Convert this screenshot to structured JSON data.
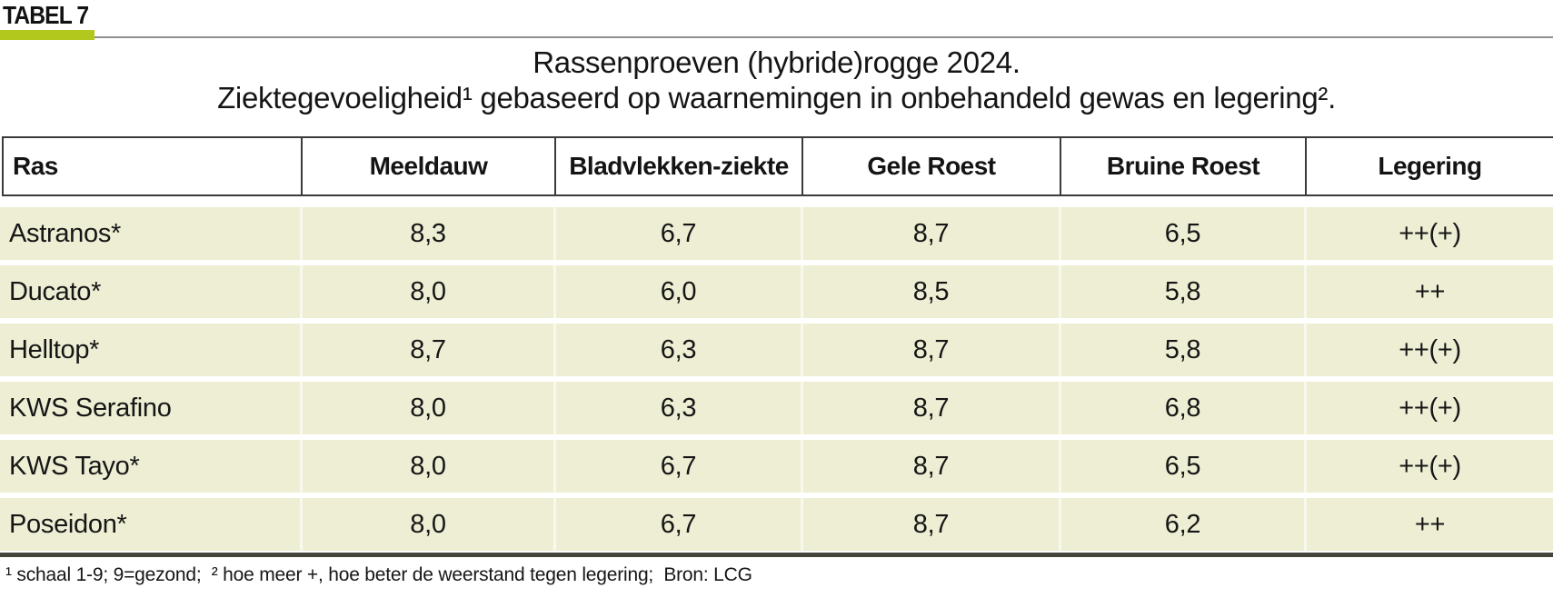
{
  "figure": {
    "tag": "TABEL 7",
    "colors": {
      "accent_green": "#b3c81d",
      "row_background": "#edeed3",
      "header_border": "#3a3a3a",
      "bottom_rule": "#45453c"
    }
  },
  "chart_data": {
    "type": "table",
    "title_line1": "Rassenproeven (hybride)rogge 2024.",
    "title_line2": "Ziektegevoeligheid¹ gebaseerd op waarnemingen in onbehandeld gewas en legering².",
    "columns": [
      "Ras",
      "Meeldauw",
      "Bladvlekken-ziekte",
      "Gele Roest",
      "Bruine Roest",
      "Legering"
    ],
    "rows": [
      [
        "Astranos*",
        "8,3",
        "6,7",
        "8,7",
        "6,5",
        "++(+)"
      ],
      [
        "Ducato*",
        "8,0",
        "6,0",
        "8,5",
        "5,8",
        "++"
      ],
      [
        "Helltop*",
        "8,7",
        "6,3",
        "8,7",
        "5,8",
        "++(+)"
      ],
      [
        "KWS Serafino",
        "8,0",
        "6,3",
        "8,7",
        "6,8",
        "++(+)"
      ],
      [
        "KWS Tayo*",
        "8,0",
        "6,7",
        "8,7",
        "6,5",
        "++(+)"
      ],
      [
        "Poseidon*",
        "8,0",
        "6,7",
        "8,7",
        "6,2",
        "++"
      ]
    ],
    "footnote": "¹ schaal 1-9; 9=gezond;  ² hoe meer +, hoe beter de weerstand tegen legering;  Bron: LCG",
    "source": "LCG",
    "scale_note": "schaal 1-9; 9=gezond"
  }
}
